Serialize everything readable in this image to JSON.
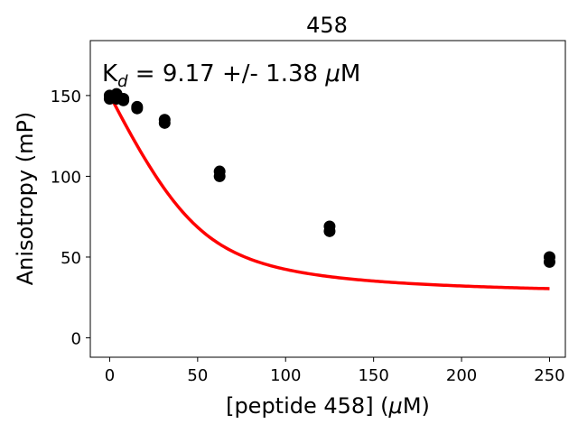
{
  "chart_data": {
    "type": "scatter",
    "title": "458",
    "annotation": {
      "prefix": "K",
      "subscript": "d",
      "value_text": " = 9.17 +/- 1.38 ",
      "mu": "μ",
      "unit": "M"
    },
    "xlabel": {
      "before": "[peptide 458] (",
      "mu": "μ",
      "after": "M)"
    },
    "ylabel": "Anisotropy (mP)",
    "xlim": [
      -11,
      259
    ],
    "ylim": [
      -12,
      184
    ],
    "xticks": [
      0,
      50,
      100,
      150,
      200,
      250
    ],
    "yticks": [
      0,
      50,
      100,
      150
    ],
    "grid": false,
    "points": [
      {
        "x": 0,
        "y": 148
      },
      {
        "x": 0,
        "y": 150
      },
      {
        "x": 1.95,
        "y": 149
      },
      {
        "x": 3.9,
        "y": 148
      },
      {
        "x": 3.9,
        "y": 151
      },
      {
        "x": 7.8,
        "y": 147
      },
      {
        "x": 7.8,
        "y": 148
      },
      {
        "x": 15.6,
        "y": 142
      },
      {
        "x": 15.6,
        "y": 143
      },
      {
        "x": 31.25,
        "y": 133
      },
      {
        "x": 31.25,
        "y": 135
      },
      {
        "x": 62.5,
        "y": 100
      },
      {
        "x": 62.5,
        "y": 103
      },
      {
        "x": 125,
        "y": 66
      },
      {
        "x": 125,
        "y": 69
      },
      {
        "x": 250,
        "y": 47
      },
      {
        "x": 250,
        "y": 50
      }
    ],
    "fit": {
      "model": "quadratic binding",
      "Kd": 9.17,
      "top": 150.5,
      "bottom": 25,
      "ligand_conc": 50,
      "x_range": [
        0,
        250
      ]
    },
    "colors": {
      "fit_line": "#ff0000",
      "points": "#000000",
      "axes": "#000000"
    }
  }
}
